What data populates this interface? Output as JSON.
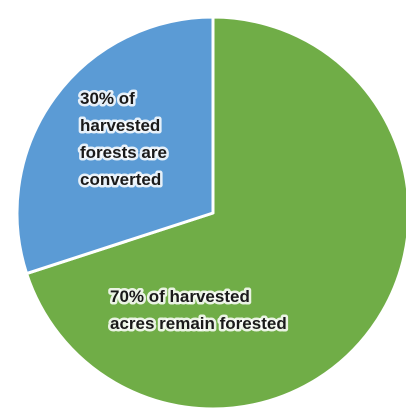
{
  "chart_data": {
    "type": "pie",
    "categories": [
      "30% of harvested forests are converted",
      "70% of harvested acres remain forested"
    ],
    "values": [
      30,
      70
    ],
    "colors": [
      "#5b9bd5",
      "#70ad47"
    ],
    "labels": [
      {
        "lines": [
          "30% of",
          "harvested",
          "forests are",
          "converted"
        ]
      },
      {
        "lines": [
          "70% of harvested",
          "acres remain forested"
        ]
      }
    ],
    "legend": "none"
  }
}
